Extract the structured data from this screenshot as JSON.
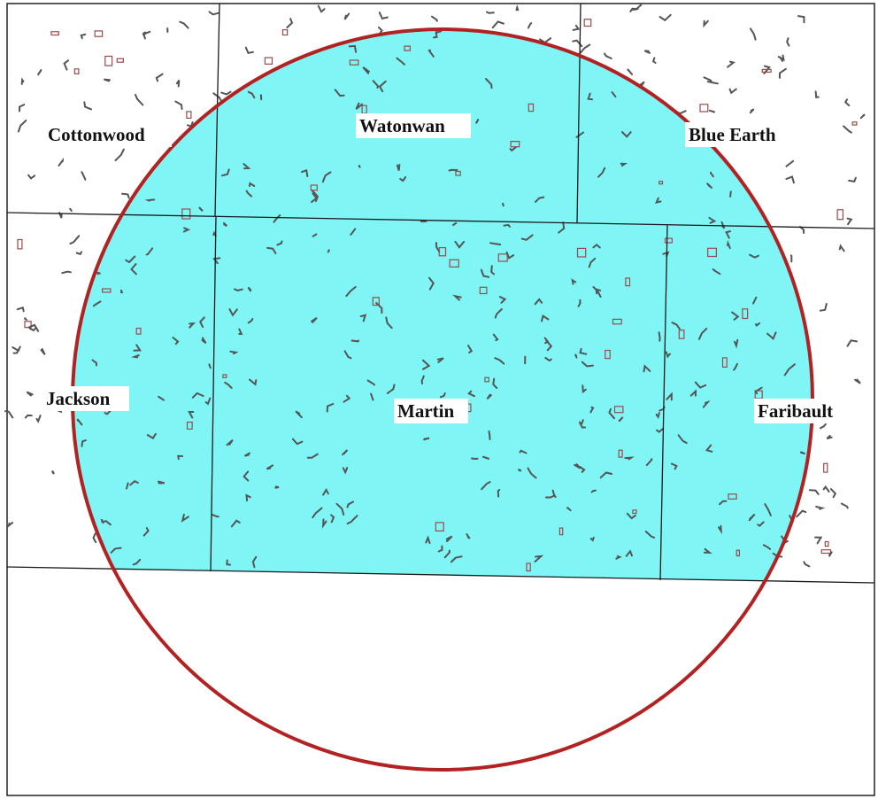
{
  "map": {
    "colors": {
      "buffer_fill": "#80f5f5",
      "buffer_ring": "#b22222",
      "boundary": "#1a1a1a",
      "wetland": "#555555",
      "parcel": "#9a4a4a",
      "background": "#ffffff"
    },
    "counties": [
      {
        "id": "cottonwood",
        "name": "Cottonwood"
      },
      {
        "id": "watonwan",
        "name": "Watonwan"
      },
      {
        "id": "blue-earth",
        "name": "Blue Earth"
      },
      {
        "id": "jackson",
        "name": "Jackson"
      },
      {
        "id": "martin",
        "name": "Martin"
      },
      {
        "id": "faribault",
        "name": "Faribault"
      }
    ]
  }
}
